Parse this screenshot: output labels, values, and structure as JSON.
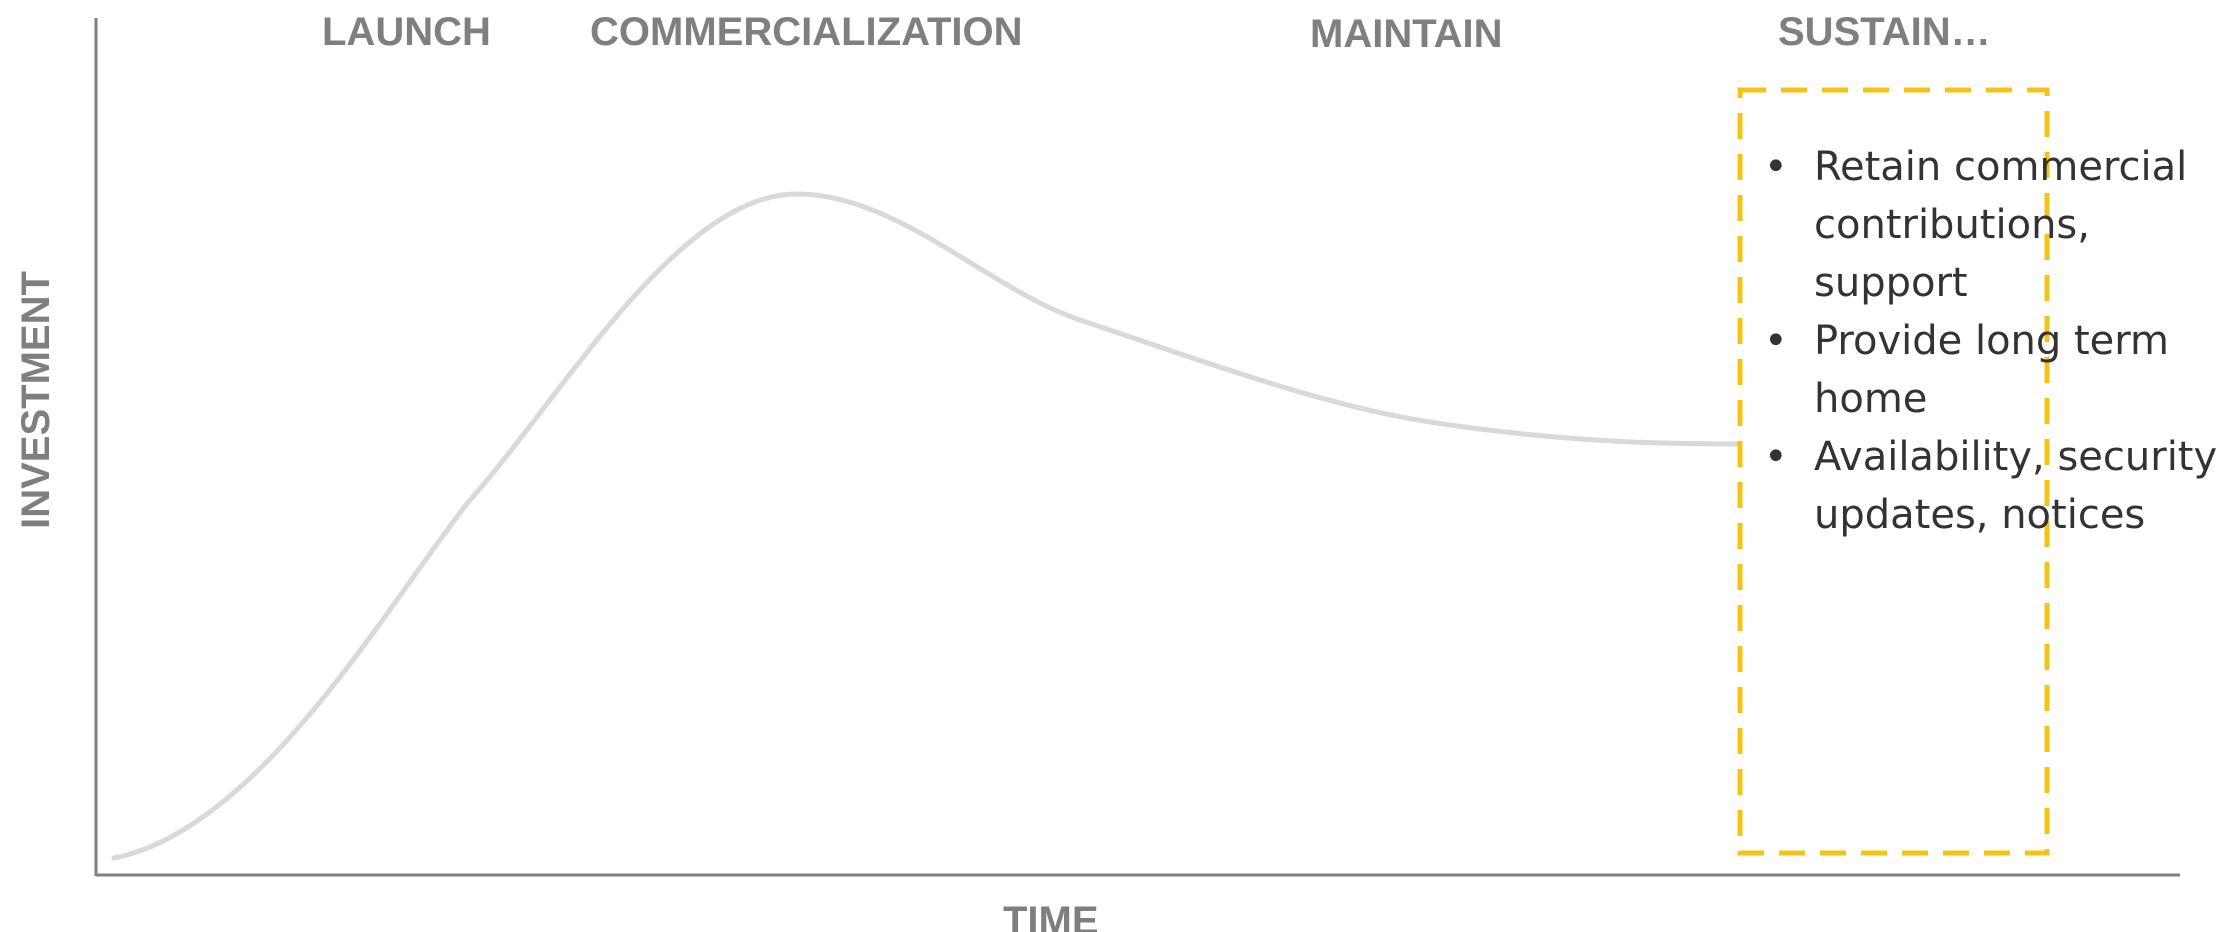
{
  "phases": {
    "launch": "LAUNCH",
    "commercialization": "COMMERCIALIZATION",
    "maintain": "MAINTAIN",
    "sustain": "SUSTAIN…"
  },
  "axes": {
    "y_label": "INVESTMENT",
    "x_label": "TIME"
  },
  "sustain_box": {
    "bullet_glyph": "•",
    "bullets": [
      "Retain commercial contributions, support",
      "Provide long term home",
      "Availability, security updates, notices"
    ]
  },
  "colors": {
    "axis": "#7f7f7f",
    "curve": "#d9d9d9",
    "highlight_box": "#f5c314",
    "label_text": "#7f7f7f",
    "bullet_text": "#333333"
  }
}
